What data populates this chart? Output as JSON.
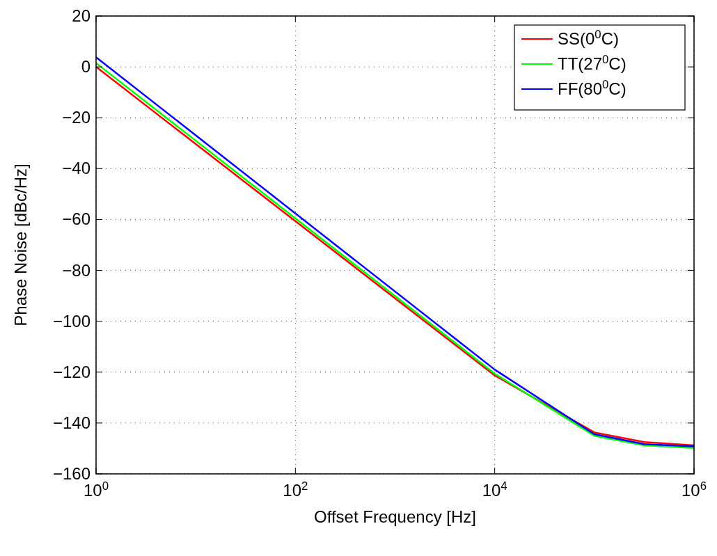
{
  "chart_data": {
    "type": "line",
    "xlabel": "Offset Frequency [Hz]",
    "ylabel": "Phase Noise [dBc/Hz]",
    "log": "x",
    "x": [
      1,
      10000,
      100000,
      316000,
      1000000
    ],
    "series": [
      {
        "name": "SS(0$^{0}$C)",
        "color": "#ff0000",
        "values": [
          0,
          -121.3,
          -143.7,
          -147.5,
          -148.8
        ]
      },
      {
        "name": "TT(27$^{0}$C)",
        "color": "#00ff00",
        "values": [
          1.5,
          -120.6,
          -145,
          -148.8,
          -149.8
        ]
      },
      {
        "name": "FF(80$^{0}$C)",
        "color": "#0000ff",
        "values": [
          3.8,
          -119,
          -144.4,
          -148.3,
          -149.2
        ]
      }
    ],
    "xlim": [
      1,
      1000000
    ],
    "xticks": [
      {
        "value": 1,
        "label": "10$^{0}$"
      },
      {
        "value": 100,
        "label": "10$^{2}$"
      },
      {
        "value": 10000,
        "label": "10$^{4}$"
      },
      {
        "value": 1000000,
        "label": "10$^{6}$"
      }
    ],
    "ylim": [
      -160,
      20
    ],
    "yticks": [
      -160,
      -140,
      -120,
      -100,
      -80,
      -60,
      -40,
      -20,
      0,
      20
    ],
    "grid": true,
    "legend": "top right",
    "marker": "none",
    "line_style": "solid"
  }
}
